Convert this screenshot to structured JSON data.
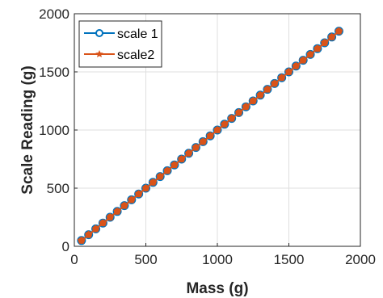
{
  "chart_data": {
    "type": "line",
    "xlabel": "Mass (g)",
    "ylabel": "Scale Reading (g)",
    "xlim": [
      0,
      2000
    ],
    "ylim": [
      0,
      2000
    ],
    "xticks": [
      0,
      500,
      1000,
      1500,
      2000
    ],
    "yticks": [
      0,
      500,
      1000,
      1500,
      2000
    ],
    "grid": true,
    "legend_position": "top-left",
    "x": [
      50,
      100,
      150,
      200,
      250,
      300,
      350,
      400,
      450,
      500,
      550,
      600,
      650,
      700,
      750,
      800,
      850,
      900,
      950,
      1000,
      1050,
      1100,
      1150,
      1200,
      1250,
      1300,
      1350,
      1400,
      1450,
      1500,
      1550,
      1600,
      1650,
      1700,
      1750,
      1800,
      1850
    ],
    "series": [
      {
        "name": "scale 1",
        "color": "#0072BD",
        "marker": "circle-open",
        "values": [
          50,
          100,
          150,
          200,
          250,
          300,
          350,
          400,
          450,
          500,
          550,
          600,
          650,
          700,
          750,
          800,
          850,
          900,
          950,
          1000,
          1050,
          1100,
          1150,
          1200,
          1250,
          1300,
          1350,
          1400,
          1450,
          1500,
          1550,
          1600,
          1650,
          1700,
          1750,
          1800,
          1850
        ]
      },
      {
        "name": "scale2",
        "color": "#D95319",
        "marker": "filled-star",
        "values": [
          50,
          100,
          150,
          200,
          250,
          300,
          350,
          400,
          450,
          500,
          550,
          600,
          650,
          700,
          750,
          800,
          850,
          900,
          950,
          1000,
          1050,
          1100,
          1150,
          1200,
          1250,
          1300,
          1350,
          1400,
          1450,
          1500,
          1550,
          1600,
          1650,
          1700,
          1750,
          1800,
          1850
        ]
      }
    ]
  }
}
